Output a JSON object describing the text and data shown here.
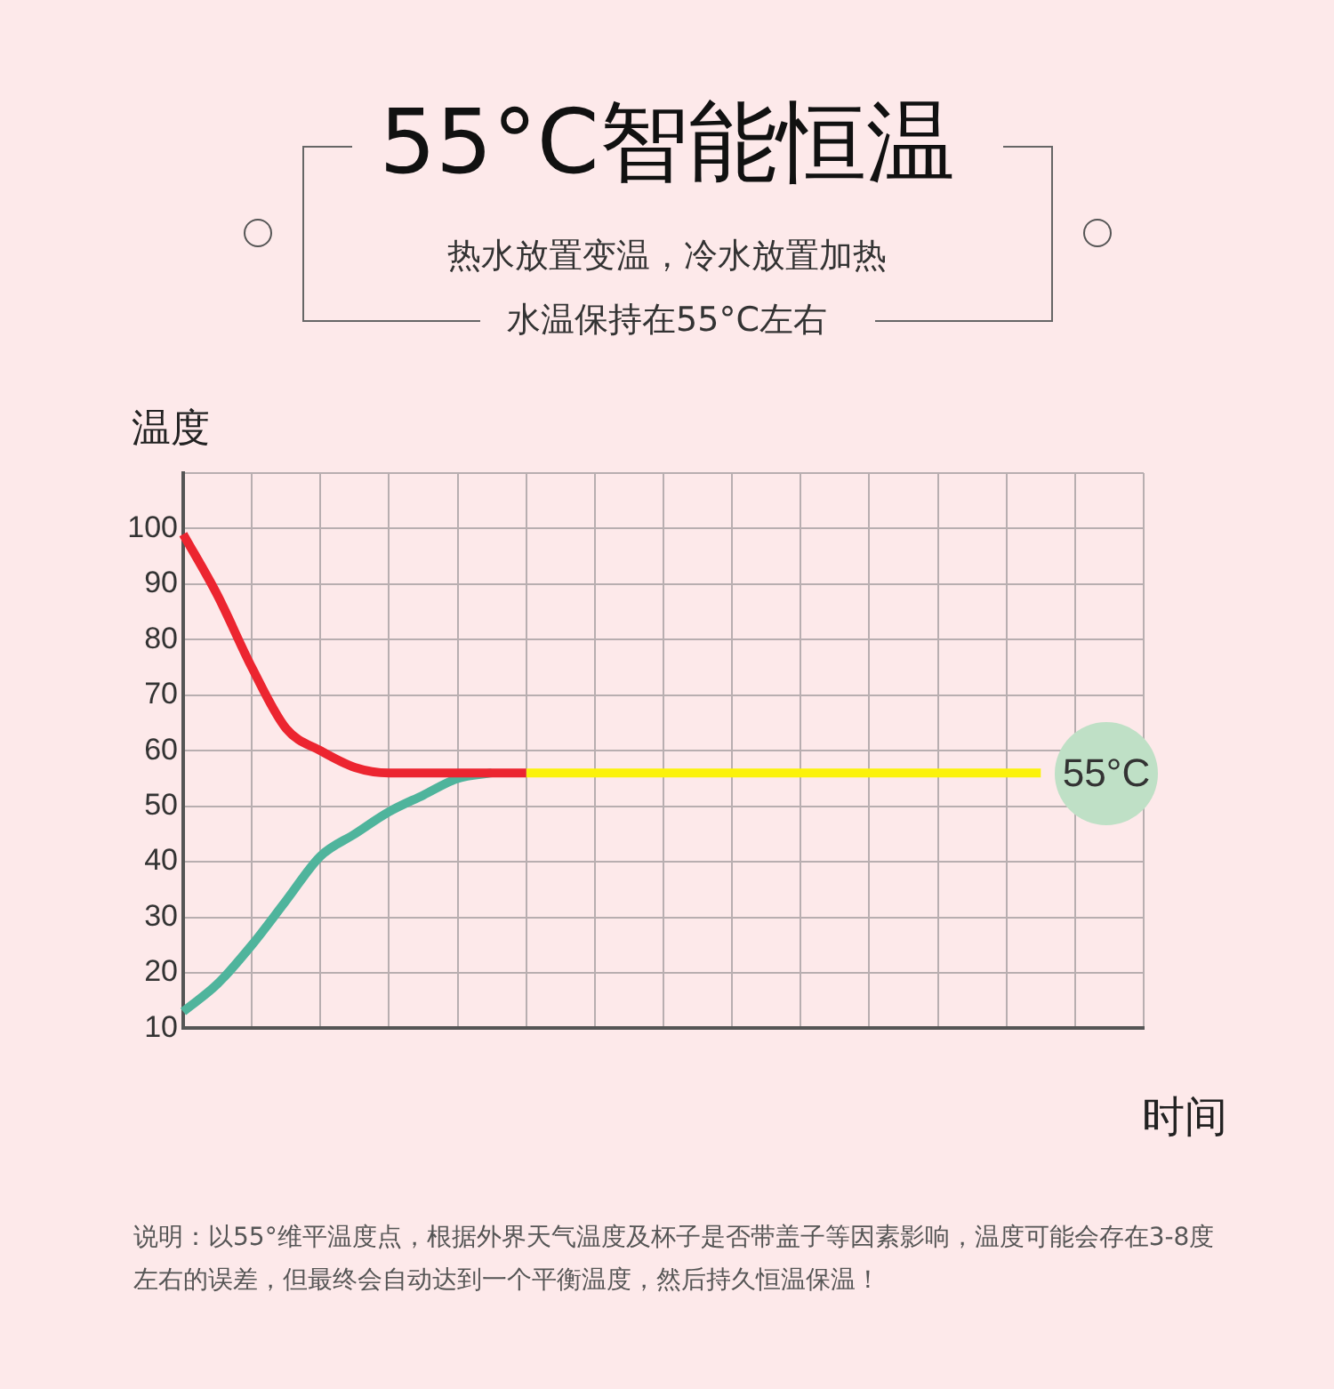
{
  "chart_data": {
    "type": "line",
    "title": "55°C智能恒温",
    "subtitle": "热水放置变温，冷水放置加热",
    "xlabel": "时间",
    "ylabel": "温度",
    "categories": [
      null,
      null,
      null,
      null,
      null,
      null,
      null,
      null,
      null,
      null,
      null,
      null,
      null,
      null,
      null,
      null,
      null,
      null,
      null,
      null,
      null,
      null,
      null,
      null,
      null,
      null,
      null,
      null,
      null
    ],
    "series": [
      {
        "color": "#ec2530",
        "values": [
          99,
          88,
          75,
          64,
          60,
          57,
          56,
          56,
          56,
          56,
          56,
          null,
          null,
          null,
          null,
          null,
          null,
          null,
          null,
          null,
          null,
          null,
          null,
          null,
          null,
          null,
          null,
          null,
          null
        ]
      },
      {
        "color": "#4fb49c",
        "values": [
          13,
          18,
          25,
          33,
          41,
          45,
          49,
          52,
          55,
          56,
          null,
          null,
          null,
          null,
          null,
          null,
          null,
          null,
          null,
          null,
          null,
          null,
          null,
          null,
          null,
          null,
          null,
          null,
          null
        ]
      },
      {
        "color": "#fbf20a",
        "values": [
          null,
          null,
          null,
          null,
          null,
          null,
          null,
          null,
          null,
          null,
          56,
          56,
          56,
          56,
          56,
          56,
          56,
          56,
          56,
          56,
          56,
          56,
          56,
          56,
          56,
          56,
          null,
          null,
          null
        ]
      }
    ],
    "ylim": [
      10,
      110
    ],
    "yticks": [
      10,
      20,
      30,
      40,
      50,
      60,
      70,
      80,
      90,
      100,
      {
        "value": 110,
        "label": null
      }
    ],
    "grid": true,
    "marker": "none",
    "line_style": "solid",
    "annotations": [
      "55°C",
      "水温保持在55°C左右",
      "说明：以55°维平温度点，根据外界天气温度及杯子是否带盖子等因素影响，温度可能会存在3-8度左右的误差，但最终会自动达到一个平衡温度，然后持久恒温保温！"
    ]
  }
}
